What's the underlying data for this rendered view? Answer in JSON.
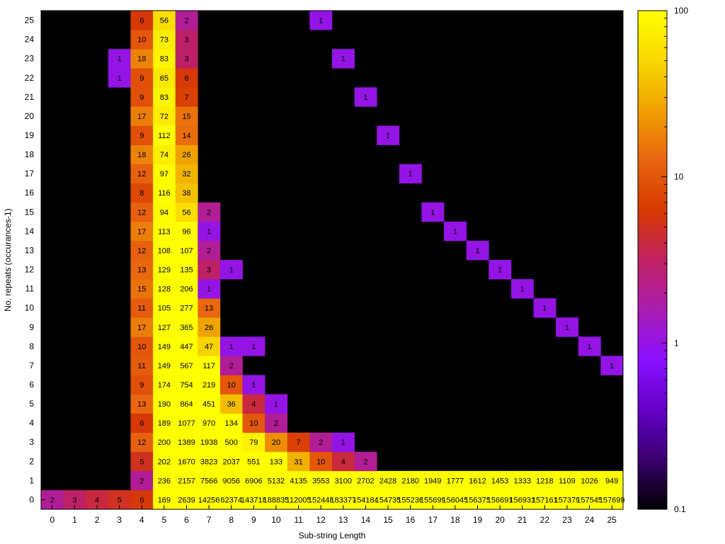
{
  "chart_data": {
    "type": "heatmap",
    "xlabel": "Sub-string Length",
    "ylabel": "No. repeats (occurances-1)",
    "x": [
      0,
      1,
      2,
      3,
      4,
      5,
      6,
      7,
      8,
      9,
      10,
      11,
      12,
      13,
      14,
      15,
      16,
      17,
      18,
      19,
      20,
      21,
      22,
      23,
      24,
      25
    ],
    "y": [
      0,
      1,
      2,
      3,
      4,
      5,
      6,
      7,
      8,
      9,
      10,
      11,
      12,
      13,
      14,
      15,
      16,
      17,
      18,
      19,
      20,
      21,
      22,
      23,
      24,
      25
    ],
    "color_scale": "log",
    "colorbar_ticks": [
      "0.1",
      "1",
      "10",
      "100"
    ],
    "colorbar_range": [
      0.1,
      100
    ],
    "cells": [
      [
        0,
        0,
        "2"
      ],
      [
        1,
        0,
        "3"
      ],
      [
        2,
        0,
        "4"
      ],
      [
        3,
        0,
        "5"
      ],
      [
        4,
        0,
        "6"
      ],
      [
        5,
        0,
        "169"
      ],
      [
        6,
        0,
        "2639"
      ],
      [
        7,
        0,
        "14256"
      ],
      [
        8,
        0,
        "62374"
      ],
      [
        9,
        0,
        "143718"
      ],
      [
        10,
        0,
        "188835"
      ],
      [
        11,
        0,
        "112005"
      ],
      [
        12,
        0,
        "152448"
      ],
      [
        13,
        0,
        "183377"
      ],
      [
        14,
        0,
        "154184"
      ],
      [
        15,
        0,
        "154735"
      ],
      [
        16,
        0,
        "155236"
      ],
      [
        17,
        0,
        "155699"
      ],
      [
        18,
        0,
        "156045"
      ],
      [
        19,
        0,
        "156375"
      ],
      [
        20,
        0,
        "156691"
      ],
      [
        21,
        0,
        "156931"
      ],
      [
        22,
        0,
        "157161"
      ],
      [
        23,
        0,
        "157379"
      ],
      [
        24,
        0,
        "157545"
      ],
      [
        25,
        0,
        "157699"
      ],
      [
        4,
        1,
        "2"
      ],
      [
        5,
        1,
        "236"
      ],
      [
        6,
        1,
        "2157"
      ],
      [
        7,
        1,
        "7566"
      ],
      [
        8,
        1,
        "9056"
      ],
      [
        9,
        1,
        "6906"
      ],
      [
        10,
        1,
        "5132"
      ],
      [
        11,
        1,
        "4135"
      ],
      [
        12,
        1,
        "3553"
      ],
      [
        13,
        1,
        "3100"
      ],
      [
        14,
        1,
        "2702"
      ],
      [
        15,
        1,
        "2428"
      ],
      [
        16,
        1,
        "2180"
      ],
      [
        17,
        1,
        "1949"
      ],
      [
        18,
        1,
        "1777"
      ],
      [
        19,
        1,
        "1612"
      ],
      [
        20,
        1,
        "1453"
      ],
      [
        21,
        1,
        "1333"
      ],
      [
        22,
        1,
        "1218"
      ],
      [
        23,
        1,
        "1109"
      ],
      [
        24,
        1,
        "1026"
      ],
      [
        25,
        1,
        "949"
      ],
      [
        4,
        2,
        "5"
      ],
      [
        5,
        2,
        "202"
      ],
      [
        6,
        2,
        "1670"
      ],
      [
        7,
        2,
        "3823"
      ],
      [
        8,
        2,
        "2037"
      ],
      [
        9,
        2,
        "551"
      ],
      [
        10,
        2,
        "133"
      ],
      [
        11,
        2,
        "31"
      ],
      [
        12,
        2,
        "10"
      ],
      [
        13,
        2,
        "4"
      ],
      [
        14,
        2,
        "2"
      ],
      [
        4,
        3,
        "12"
      ],
      [
        5,
        3,
        "200"
      ],
      [
        6,
        3,
        "1389"
      ],
      [
        7,
        3,
        "1938"
      ],
      [
        8,
        3,
        "500"
      ],
      [
        9,
        3,
        "79"
      ],
      [
        10,
        3,
        "20"
      ],
      [
        11,
        3,
        "7"
      ],
      [
        12,
        3,
        "2"
      ],
      [
        13,
        3,
        "1"
      ],
      [
        4,
        4,
        "6"
      ],
      [
        5,
        4,
        "189"
      ],
      [
        6,
        4,
        "1077"
      ],
      [
        7,
        4,
        "970"
      ],
      [
        8,
        4,
        "134"
      ],
      [
        9,
        4,
        "10"
      ],
      [
        10,
        4,
        "2"
      ],
      [
        4,
        5,
        "13"
      ],
      [
        5,
        5,
        "190"
      ],
      [
        6,
        5,
        "864"
      ],
      [
        7,
        5,
        "451"
      ],
      [
        8,
        5,
        "36"
      ],
      [
        9,
        5,
        "4"
      ],
      [
        10,
        5,
        "1"
      ],
      [
        4,
        6,
        "9"
      ],
      [
        5,
        6,
        "174"
      ],
      [
        6,
        6,
        "754"
      ],
      [
        7,
        6,
        "219"
      ],
      [
        8,
        6,
        "10"
      ],
      [
        9,
        6,
        "1"
      ],
      [
        4,
        7,
        "11"
      ],
      [
        5,
        7,
        "149"
      ],
      [
        6,
        7,
        "567"
      ],
      [
        7,
        7,
        "117"
      ],
      [
        8,
        7,
        "2"
      ],
      [
        25,
        7,
        "1"
      ],
      [
        4,
        8,
        "10"
      ],
      [
        5,
        8,
        "149"
      ],
      [
        6,
        8,
        "447"
      ],
      [
        7,
        8,
        "47"
      ],
      [
        8,
        8,
        "1"
      ],
      [
        9,
        8,
        "1"
      ],
      [
        24,
        8,
        "1"
      ],
      [
        4,
        9,
        "17"
      ],
      [
        5,
        9,
        "127"
      ],
      [
        6,
        9,
        "365"
      ],
      [
        7,
        9,
        "26"
      ],
      [
        23,
        9,
        "1"
      ],
      [
        4,
        10,
        "11"
      ],
      [
        5,
        10,
        "105"
      ],
      [
        6,
        10,
        "277"
      ],
      [
        7,
        10,
        "13"
      ],
      [
        22,
        10,
        "1"
      ],
      [
        4,
        11,
        "15"
      ],
      [
        5,
        11,
        "128"
      ],
      [
        6,
        11,
        "206"
      ],
      [
        7,
        11,
        "1"
      ],
      [
        21,
        11,
        "1"
      ],
      [
        4,
        12,
        "13"
      ],
      [
        5,
        12,
        "129"
      ],
      [
        6,
        12,
        "135"
      ],
      [
        7,
        12,
        "3"
      ],
      [
        8,
        12,
        "1"
      ],
      [
        20,
        12,
        "1"
      ],
      [
        4,
        13,
        "12"
      ],
      [
        5,
        13,
        "108"
      ],
      [
        6,
        13,
        "107"
      ],
      [
        7,
        13,
        "2"
      ],
      [
        19,
        13,
        "1"
      ],
      [
        4,
        14,
        "17"
      ],
      [
        5,
        14,
        "113"
      ],
      [
        6,
        14,
        "96"
      ],
      [
        7,
        14,
        "1"
      ],
      [
        18,
        14,
        "1"
      ],
      [
        4,
        15,
        "12"
      ],
      [
        5,
        15,
        "94"
      ],
      [
        6,
        15,
        "56"
      ],
      [
        7,
        15,
        "2"
      ],
      [
        17,
        15,
        "1"
      ],
      [
        4,
        16,
        "8"
      ],
      [
        5,
        16,
        "116"
      ],
      [
        6,
        16,
        "38"
      ],
      [
        4,
        17,
        "12"
      ],
      [
        5,
        17,
        "97"
      ],
      [
        6,
        17,
        "32"
      ],
      [
        16,
        17,
        "1"
      ],
      [
        4,
        18,
        "18"
      ],
      [
        5,
        18,
        "74"
      ],
      [
        6,
        18,
        "26"
      ],
      [
        4,
        19,
        "9"
      ],
      [
        5,
        19,
        "112"
      ],
      [
        6,
        19,
        "14"
      ],
      [
        15,
        19,
        "1"
      ],
      [
        4,
        20,
        "17"
      ],
      [
        5,
        20,
        "72"
      ],
      [
        6,
        20,
        "15"
      ],
      [
        4,
        21,
        "9"
      ],
      [
        5,
        21,
        "83"
      ],
      [
        6,
        21,
        "7"
      ],
      [
        14,
        21,
        "1"
      ],
      [
        3,
        22,
        "1"
      ],
      [
        4,
        22,
        "9"
      ],
      [
        5,
        22,
        "65"
      ],
      [
        6,
        22,
        "6"
      ],
      [
        3,
        23,
        "1"
      ],
      [
        4,
        23,
        "18"
      ],
      [
        5,
        23,
        "83"
      ],
      [
        6,
        23,
        "3"
      ],
      [
        13,
        23,
        "1"
      ],
      [
        4,
        24,
        "10"
      ],
      [
        5,
        24,
        "73"
      ],
      [
        6,
        24,
        "3"
      ],
      [
        4,
        25,
        "6"
      ],
      [
        5,
        25,
        "56"
      ],
      [
        6,
        25,
        "2"
      ],
      [
        12,
        25,
        "1"
      ]
    ]
  }
}
